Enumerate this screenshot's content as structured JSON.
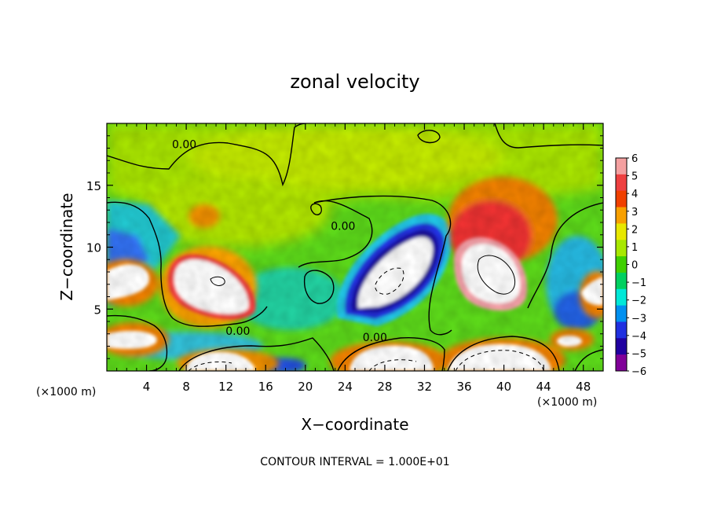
{
  "chart_data": {
    "type": "heatmap",
    "title": "zonal velocity",
    "xlabel": "X−coordinate",
    "ylabel": "Z−coordinate",
    "x_unit_left": "(×1000 m)",
    "x_unit_right": "(×1000 m)",
    "footnote": "CONTOUR INTERVAL = 1.000E+01",
    "xlim": [
      0,
      50
    ],
    "ylim": [
      0,
      20
    ],
    "x_ticks": [
      4,
      8,
      12,
      16,
      20,
      24,
      28,
      32,
      36,
      40,
      44,
      48
    ],
    "y_ticks": [
      5,
      10,
      15
    ],
    "x_tick_labels": [
      "4",
      "8",
      "12",
      "16",
      "20",
      "24",
      "28",
      "32",
      "36",
      "40",
      "44",
      "48"
    ],
    "y_tick_labels": [
      "5",
      "10",
      "15"
    ],
    "colorbar": {
      "levels": [
        6,
        5,
        4,
        3,
        2,
        1,
        0,
        -1,
        -2,
        -3,
        -4,
        -5,
        -6
      ],
      "labels": [
        "6",
        "5",
        "4",
        "3",
        "2",
        "1",
        "0",
        "−1",
        "−2",
        "−3",
        "−4",
        "−5",
        "−6"
      ],
      "colors": [
        "#f4a0a0",
        "#ee4040",
        "#f04000",
        "#f8a000",
        "#e8e800",
        "#a8e800",
        "#40d000",
        "#00d060",
        "#00e8d8",
        "#0090f0",
        "#2030e0",
        "#2000a0",
        "#800098"
      ]
    },
    "contour_labels": [
      {
        "text": "0.00",
        "x": 7.8,
        "y": 18.2
      },
      {
        "text": "0.00",
        "x": 23.8,
        "y": 11.6
      },
      {
        "text": "0.00",
        "x": 13.2,
        "y": 3.1
      },
      {
        "text": "0.00",
        "x": 27.0,
        "y": 2.6
      }
    ],
    "features": [
      {
        "kind": "positive",
        "x": [
          0,
          4.5
        ],
        "y": [
          5.5,
          8.5
        ],
        "peak": 8
      },
      {
        "kind": "positive",
        "x": [
          5.5,
          14
        ],
        "y": [
          4,
          9.5
        ],
        "peak": 8
      },
      {
        "kind": "negative",
        "x": [
          22.5,
          33.5
        ],
        "y": [
          4,
          11
        ],
        "peak": -9
      },
      {
        "kind": "positive",
        "x": [
          34,
          43
        ],
        "y": [
          5,
          15.5
        ],
        "peak": 8
      },
      {
        "kind": "positive",
        "x": [
          0,
          5.5
        ],
        "y": [
          1.5,
          3.5
        ],
        "peak": 7
      },
      {
        "kind": "positive",
        "x": [
          6.5,
          14
        ],
        "y": [
          0,
          2
        ],
        "peak": 7
      },
      {
        "kind": "positive",
        "x": [
          24,
          32.5
        ],
        "y": [
          0,
          2.5
        ],
        "peak": 8
      },
      {
        "kind": "positive",
        "x": [
          34,
          45
        ],
        "y": [
          0,
          2.5
        ],
        "peak": 8
      },
      {
        "kind": "positive",
        "x": [
          47,
          50
        ],
        "y": [
          4.5,
          7.5
        ],
        "peak": 6
      }
    ]
  }
}
